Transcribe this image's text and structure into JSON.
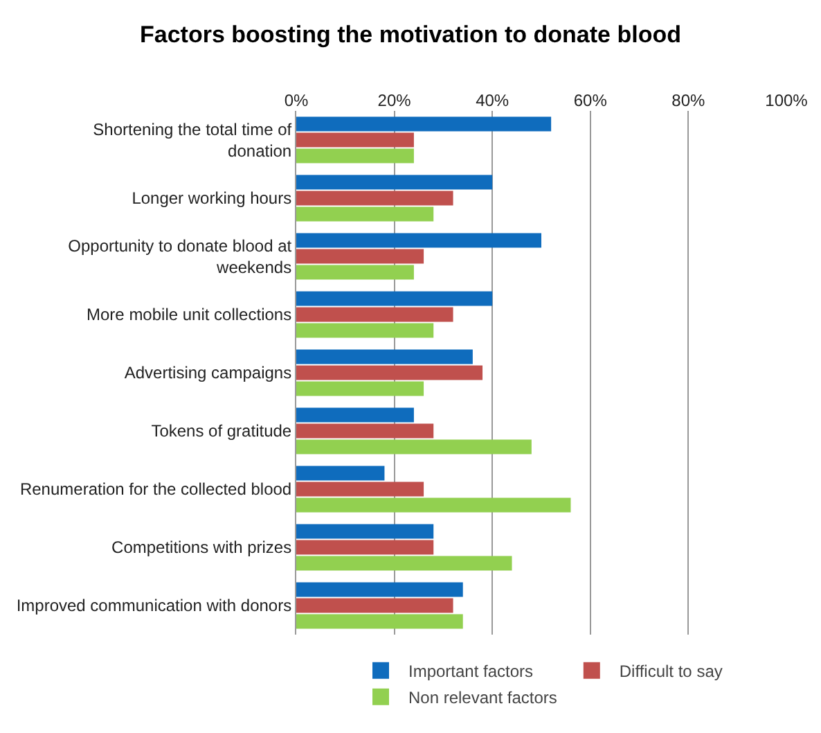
{
  "chart_data": {
    "type": "bar",
    "orientation": "horizontal",
    "title": "Factors boosting the motivation to donate blood",
    "categories": [
      "Shortening the total time of donation",
      "Longer working hours",
      "Opportunity to donate blood at weekends",
      "More mobile unit collections",
      "Advertising campaigns",
      "Tokens of gratitude",
      "Renumeration for the collected blood",
      "Competitions with prizes",
      "Improved communication with donors"
    ],
    "series": [
      {
        "name": "Important factors",
        "color": "#0f6cbd",
        "values": [
          52,
          40,
          50,
          40,
          36,
          24,
          18,
          28,
          34
        ]
      },
      {
        "name": "Difficult to say",
        "color": "#c0504d",
        "values": [
          24,
          32,
          26,
          32,
          38,
          28,
          26,
          28,
          32
        ]
      },
      {
        "name": "Non relevant factors",
        "color": "#92d050",
        "values": [
          24,
          28,
          24,
          28,
          26,
          48,
          56,
          44,
          34
        ]
      }
    ],
    "xlim": [
      0,
      100
    ],
    "xticks": [
      {
        "value": 0,
        "label": "0%"
      },
      {
        "value": 20,
        "label": "20%"
      },
      {
        "value": 40,
        "label": "40%"
      },
      {
        "value": 60,
        "label": "60%"
      },
      {
        "value": 80,
        "label": "80%"
      },
      {
        "value": 100,
        "label": "100%"
      }
    ],
    "grid": "x",
    "legend": "bottom"
  }
}
